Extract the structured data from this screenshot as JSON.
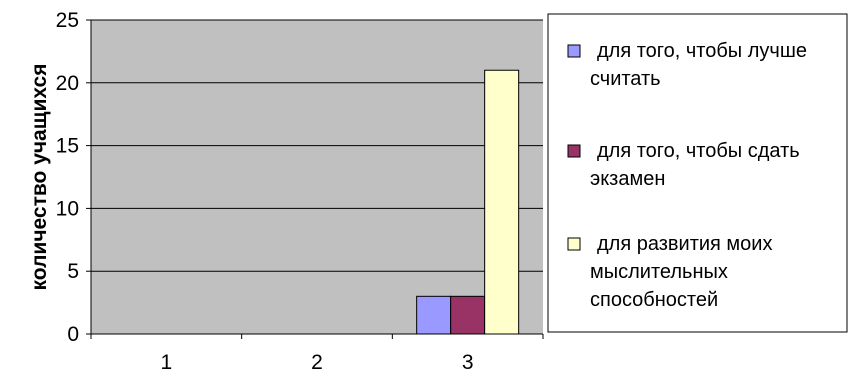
{
  "chart_data": {
    "type": "bar",
    "categories": [
      "1",
      "2",
      "3"
    ],
    "series": [
      {
        "name": "для того, чтобы лучше считать",
        "values": [
          0,
          0,
          3
        ],
        "color": "#9999ff"
      },
      {
        "name": "для того, чтобы сдать экзамен",
        "values": [
          0,
          0,
          3
        ],
        "color": "#993366"
      },
      {
        "name": "для развития моих мыслительных способностей",
        "values": [
          0,
          0,
          21
        ],
        "color": "#ffffcc"
      }
    ],
    "title": "",
    "xlabel": "",
    "ylabel": "количество учащихся",
    "ylim": [
      0,
      25
    ],
    "yticks": [
      0,
      5,
      10,
      15,
      20,
      25
    ],
    "grid": true,
    "plot_background": "#c0c0c0",
    "legend": {
      "placement": "right",
      "lines": [
        [
          "для того, чтобы лучше",
          "считать"
        ],
        [
          "для того, чтобы сдать",
          "экзамен"
        ],
        [
          "для развития моих",
          "мыслительных",
          "способностей"
        ]
      ]
    }
  }
}
